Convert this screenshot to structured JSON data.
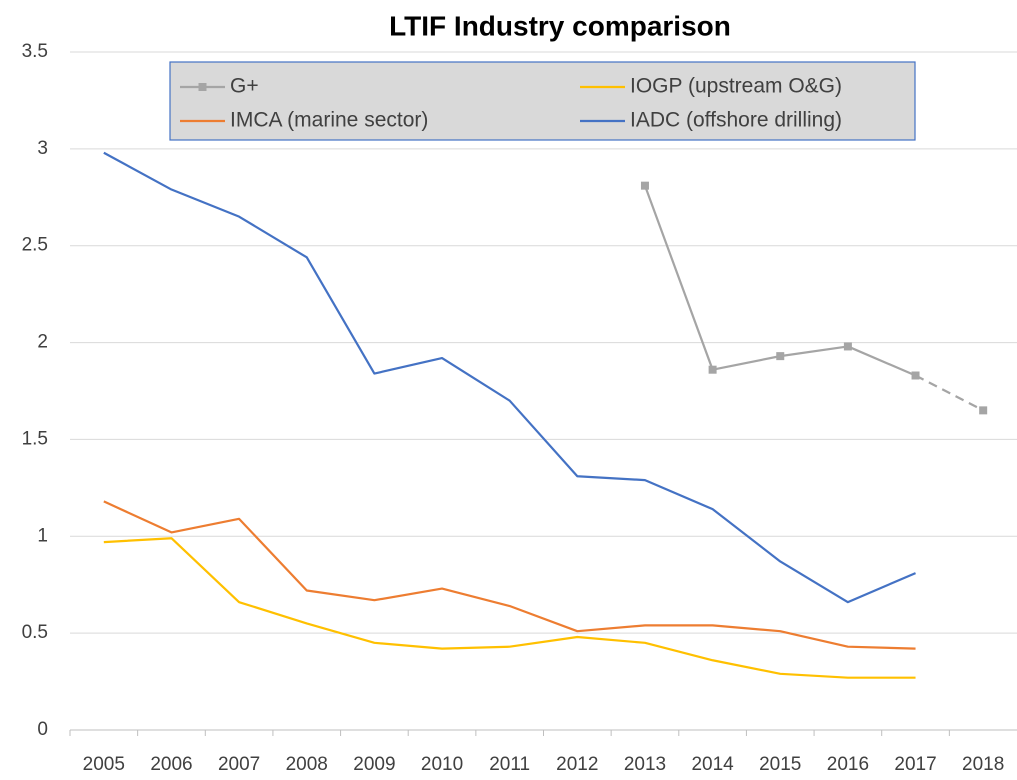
{
  "chart_data": {
    "type": "line",
    "title": "LTIF Industry comparison",
    "categories": [
      "2005",
      "2006",
      "2007",
      "2008",
      "2009",
      "2010",
      "2011",
      "2012",
      "2013",
      "2014",
      "2015",
      "2016",
      "2017",
      "2018"
    ],
    "series": [
      {
        "name": "G+",
        "color": "#a5a5a5",
        "marker": "square",
        "dash_last_segment": true,
        "values": [
          null,
          null,
          null,
          null,
          null,
          null,
          null,
          null,
          2.81,
          1.86,
          1.93,
          1.98,
          1.83,
          1.65
        ]
      },
      {
        "name": "IOGP (upstream O&G)",
        "color": "#ffc000",
        "values": [
          0.97,
          0.99,
          0.66,
          0.55,
          0.45,
          0.42,
          0.43,
          0.48,
          0.45,
          0.36,
          0.29,
          0.27,
          0.27,
          null
        ]
      },
      {
        "name": "IMCA (marine sector)",
        "color": "#ed7d31",
        "values": [
          1.18,
          1.02,
          1.09,
          0.72,
          0.67,
          0.73,
          0.64,
          0.51,
          0.54,
          0.54,
          0.51,
          0.43,
          0.42,
          null
        ]
      },
      {
        "name": "IADC (offshore drilling)",
        "color": "#4472c4",
        "values": [
          2.98,
          2.79,
          2.65,
          2.44,
          1.84,
          1.92,
          1.7,
          1.31,
          1.29,
          1.14,
          0.87,
          0.66,
          0.81,
          null
        ]
      }
    ],
    "ylim": [
      0,
      3.5
    ],
    "yticks": [
      0,
      0.5,
      1,
      1.5,
      2,
      2.5,
      3,
      3.5
    ],
    "grid": true,
    "legend": "top"
  }
}
